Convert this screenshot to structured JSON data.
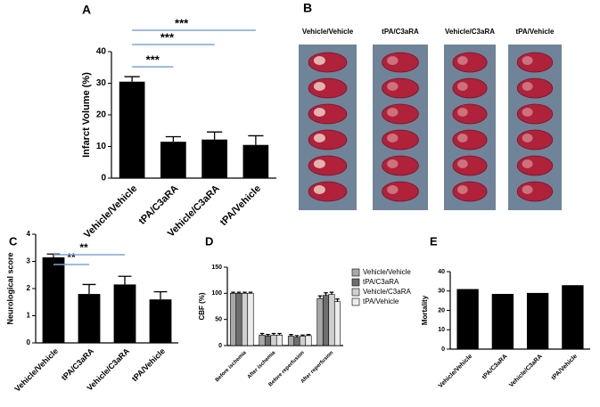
{
  "chart_data": [
    {
      "type": "bar",
      "panel_label": "A",
      "ylabel": "Infarct Volume (%)",
      "categories": [
        "Vehicle/Vehicle",
        "tPA/C3aRA",
        "Vehicle/C3aRA",
        "tPA/Vehicle"
      ],
      "values": [
        30.5,
        11.5,
        12.2,
        10.5
      ],
      "error": [
        1.6,
        1.6,
        2.4,
        2.9
      ],
      "color": "#000000",
      "ylim": [
        0,
        40
      ],
      "yticks": [
        0,
        10,
        20,
        30,
        40
      ],
      "annotations": [
        "***",
        "***",
        "***"
      ],
      "annotation_color": "#7fa6d6"
    },
    {
      "type": "bar",
      "panel_label": "C",
      "ylabel": "Neurological score",
      "categories": [
        "Vehicle/Vehicle",
        "tPA/C3aRA",
        "Vehicle/C3aRA",
        "tPA/Vehicle"
      ],
      "values": [
        3.15,
        1.8,
        2.15,
        1.6
      ],
      "error": [
        0.12,
        0.35,
        0.3,
        0.28
      ],
      "color": "#000000",
      "ylim": [
        0,
        4
      ],
      "yticks": [
        0,
        1,
        2,
        3,
        4
      ],
      "annotations": [
        "**",
        "**"
      ],
      "annotation_color": "#7fa6d6"
    },
    {
      "type": "grouped_bar",
      "panel_label": "D",
      "ylabel": "CBF (%)",
      "categories": [
        "Before ischemia",
        "After ischemia",
        "Before reperfusion",
        "After reperfusion"
      ],
      "series": [
        {
          "name": "Vehicle/Vehicle",
          "color": "#a8a8a8",
          "values": [
            100,
            20,
            18,
            90
          ],
          "error": [
            2,
            3,
            3,
            5
          ]
        },
        {
          "name": "tPA/C3aRA",
          "color": "#6e6e6e",
          "values": [
            100,
            18,
            16,
            96
          ],
          "error": [
            2,
            3,
            3,
            5
          ]
        },
        {
          "name": "Vehicle/C3aRA",
          "color": "#d0d0d0",
          "values": [
            100,
            20,
            18,
            98
          ],
          "error": [
            2,
            3,
            2,
            4
          ]
        },
        {
          "name": "tPA/Vehicle",
          "color": "#ececec",
          "values": [
            100,
            20,
            19,
            84
          ],
          "error": [
            2,
            3,
            2,
            5
          ]
        }
      ],
      "ylim": [
        0,
        150
      ],
      "yticks": [
        0,
        50,
        100,
        150
      ]
    },
    {
      "type": "bar",
      "panel_label": "E",
      "ylabel": "Mortality",
      "categories": [
        "Vehicle/Vehicle",
        "tPA/C3aRA",
        "Vehicle/C3aRA",
        "tPA/Vehicle"
      ],
      "values": [
        31,
        28.5,
        29,
        33
      ],
      "color": "#000000",
      "ylim": [
        0,
        40
      ],
      "yticks": [
        0,
        10,
        20,
        30,
        40
      ]
    }
  ],
  "photo_panel": {
    "panel_label": "B",
    "columns": [
      "Vehicle/Vehicle",
      "tPA/C3aRA",
      "Vehicle/C3aRA",
      "tPA/Vehicle"
    ]
  }
}
